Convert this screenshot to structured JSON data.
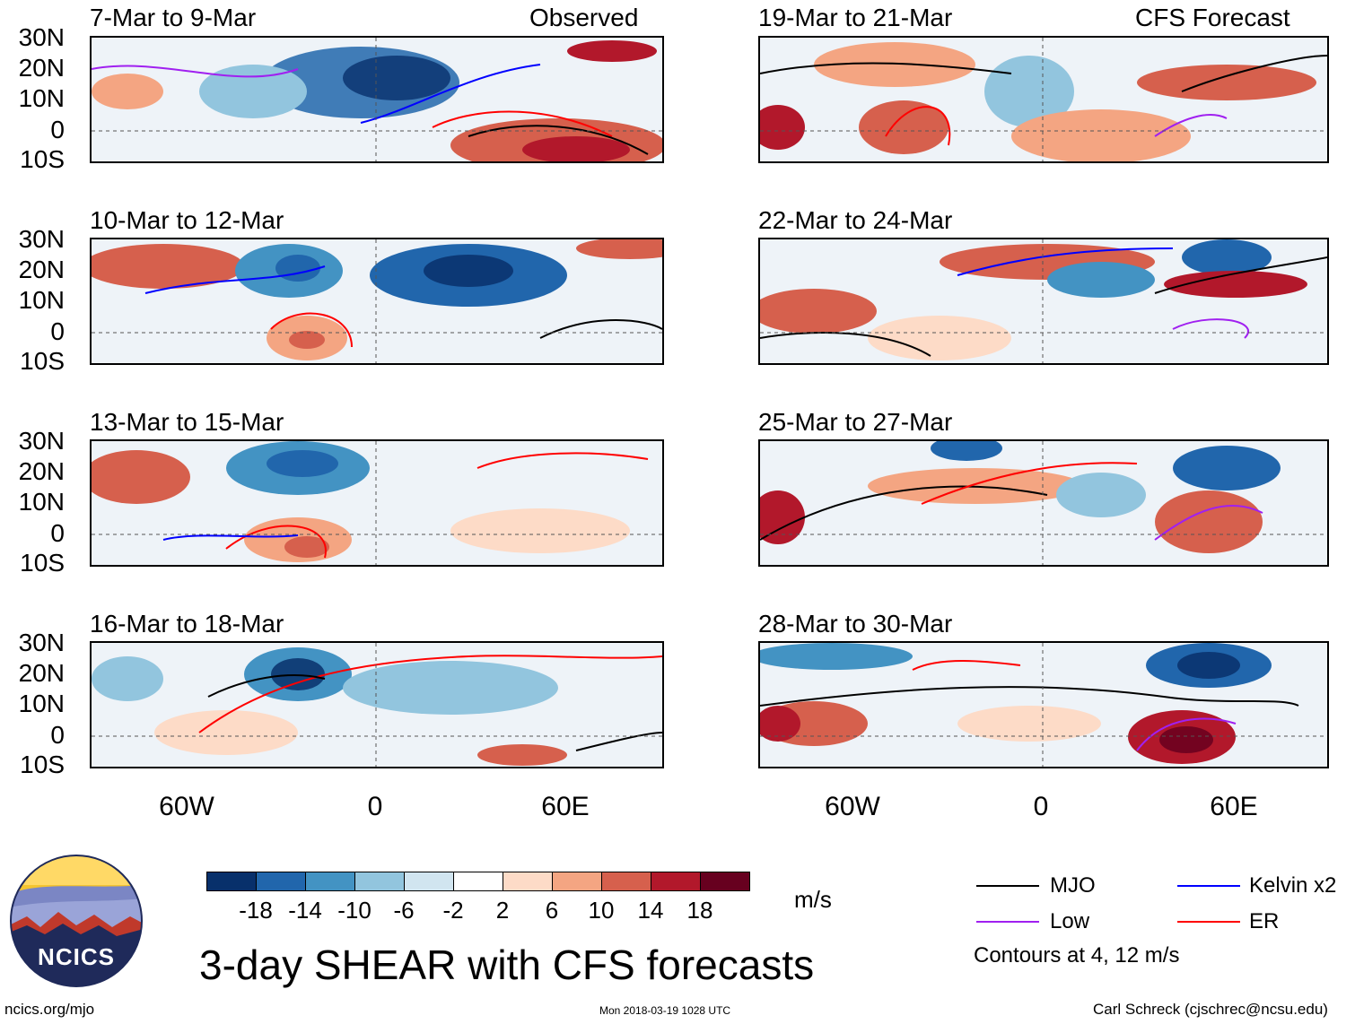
{
  "left_header_right": "Observed",
  "right_header_right": "CFS Forecast",
  "left_panels": [
    {
      "title": "7-Mar to 9-Mar"
    },
    {
      "title": "10-Mar to 12-Mar"
    },
    {
      "title": "13-Mar to 15-Mar"
    },
    {
      "title": "16-Mar to 18-Mar"
    }
  ],
  "right_panels": [
    {
      "title": "19-Mar to 21-Mar"
    },
    {
      "title": "22-Mar to 24-Mar"
    },
    {
      "title": "25-Mar to 27-Mar"
    },
    {
      "title": "28-Mar to 30-Mar"
    }
  ],
  "y_labels": [
    "30N",
    "20N",
    "10N",
    "0",
    "10S"
  ],
  "x_labels": [
    "60W",
    "0",
    "60E"
  ],
  "colorbar": {
    "colors": [
      "#08306b",
      "#2166ac",
      "#4393c3",
      "#92c5de",
      "#d1e5f0",
      "#ffffff",
      "#fddbc7",
      "#f4a582",
      "#d6604d",
      "#b2182b",
      "#67001f"
    ],
    "labels": [
      "-18",
      "-14",
      "-10",
      "-6",
      "-2",
      "2",
      "6",
      "10",
      "14",
      "18"
    ],
    "units": "m/s"
  },
  "legend": {
    "items": [
      {
        "label": "MJO",
        "color": "#000000"
      },
      {
        "label": "Kelvin x2",
        "color": "#0000ff"
      },
      {
        "label": "Low",
        "color": "#a020f0"
      },
      {
        "label": "ER",
        "color": "#ff0000"
      }
    ],
    "note": "Contours at 4, 12 m/s"
  },
  "main_title": "3-day SHEAR with CFS forecasts",
  "logo_text": "NCICS",
  "footer": {
    "left": "ncics.org/mjo",
    "center": "Mon 2018-03-19 1028 UTC",
    "right": "Carl Schreck (cjschrec@ncsu.edu)"
  }
}
